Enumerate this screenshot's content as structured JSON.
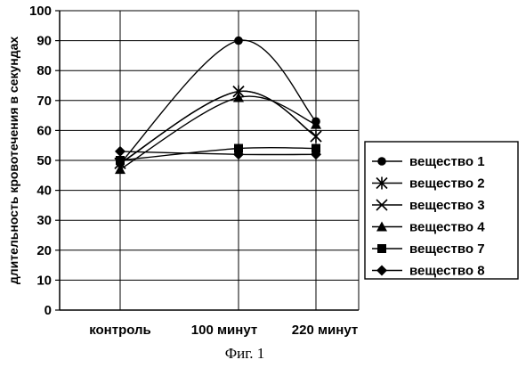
{
  "chart_data": {
    "type": "line",
    "ylabel": "длительность кровотечения в секундах",
    "xlabel": "",
    "categories": [
      "контроль",
      "100 минут",
      "220 минут"
    ],
    "ylim": [
      0,
      100
    ],
    "yticks": [
      0,
      10,
      20,
      30,
      40,
      50,
      60,
      70,
      80,
      90,
      100
    ],
    "grid": true,
    "legend_position": "right",
    "series": [
      {
        "name": "вещество 1",
        "marker": "circle",
        "values": [
          49,
          90,
          63
        ]
      },
      {
        "name": "вещество 2",
        "marker": "asterisk",
        "values": [
          49,
          73,
          58
        ]
      },
      {
        "name": "вещество 3",
        "marker": "x",
        "values": [
          49,
          73,
          58
        ]
      },
      {
        "name": "вещество 4",
        "marker": "triangle",
        "values": [
          47,
          71,
          62
        ]
      },
      {
        "name": "вещество 7",
        "marker": "square",
        "values": [
          50,
          54,
          54
        ]
      },
      {
        "name": "вещество 8",
        "marker": "diamond",
        "values": [
          53,
          52,
          52
        ]
      }
    ]
  },
  "caption": "Фиг. 1"
}
